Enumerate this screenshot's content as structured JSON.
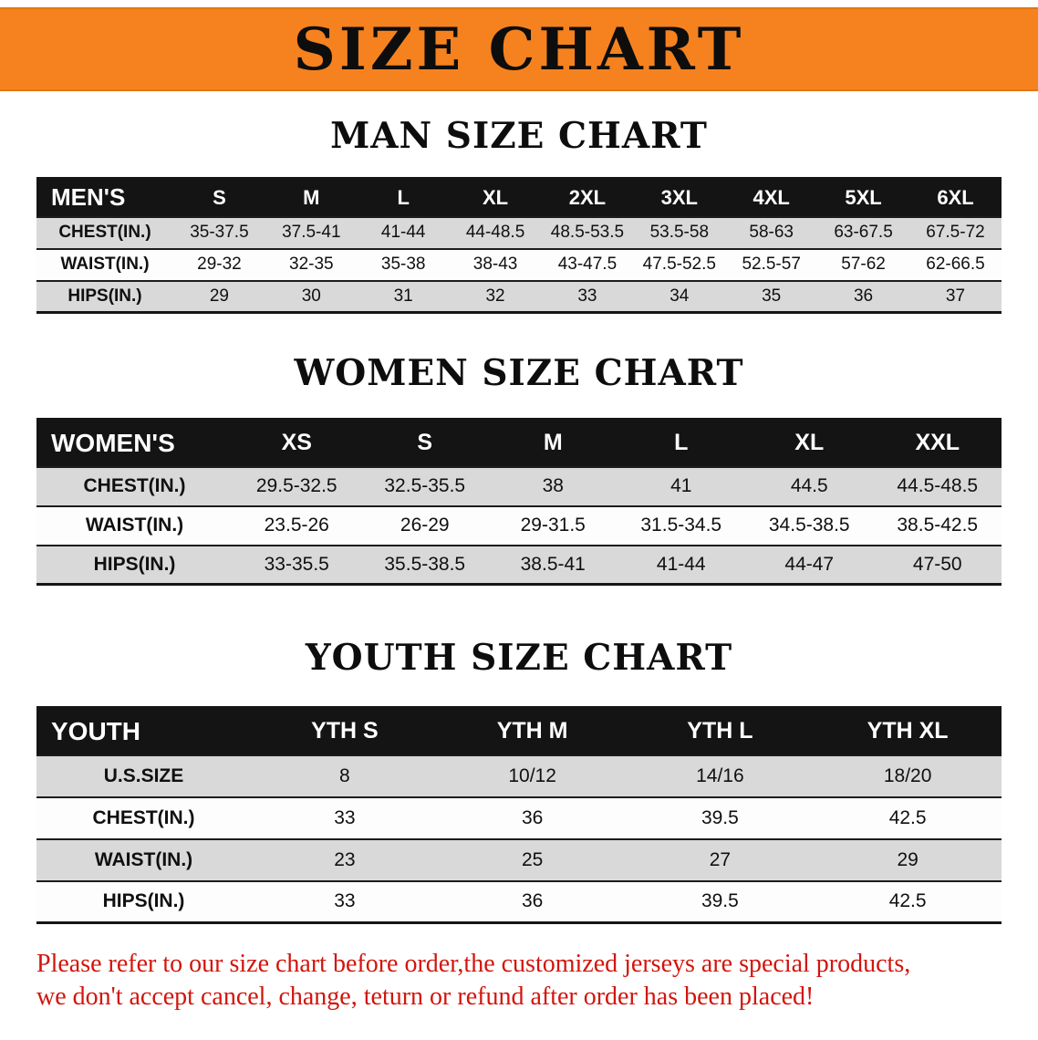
{
  "banner": {
    "title": "SIZE CHART",
    "bg_color": "#f5821f",
    "text_color": "#0d0d0d"
  },
  "sections": [
    {
      "name": "men",
      "heading": "MAN SIZE CHART",
      "header": [
        "MEN'S",
        "S",
        "M",
        "L",
        "XL",
        "2XL",
        "3XL",
        "4XL",
        "5XL",
        "6XL"
      ],
      "rows": [
        [
          "CHEST(IN.)",
          "35-37.5",
          "37.5-41",
          "41-44",
          "44-48.5",
          "48.5-53.5",
          "53.5-58",
          "58-63",
          "63-67.5",
          "67.5-72"
        ],
        [
          "WAIST(IN.)",
          "29-32",
          "32-35",
          "35-38",
          "38-43",
          "43-47.5",
          "47.5-52.5",
          "52.5-57",
          "57-62",
          "62-66.5"
        ],
        [
          "HIPS(IN.)",
          "29",
          "30",
          "31",
          "32",
          "33",
          "34",
          "35",
          "36",
          "37"
        ]
      ]
    },
    {
      "name": "women",
      "heading": "WOMEN SIZE CHART",
      "header": [
        "WOMEN'S",
        "XS",
        "S",
        "M",
        "L",
        "XL",
        "XXL"
      ],
      "rows": [
        [
          "CHEST(IN.)",
          "29.5-32.5",
          "32.5-35.5",
          "38",
          "41",
          "44.5",
          "44.5-48.5"
        ],
        [
          "WAIST(IN.)",
          "23.5-26",
          "26-29",
          "29-31.5",
          "31.5-34.5",
          "34.5-38.5",
          "38.5-42.5"
        ],
        [
          "HIPS(IN.)",
          "33-35.5",
          "35.5-38.5",
          "38.5-41",
          "41-44",
          "44-47",
          "47-50"
        ]
      ]
    },
    {
      "name": "youth",
      "heading": "YOUTH SIZE CHART",
      "header": [
        "YOUTH",
        "YTH S",
        "YTH M",
        "YTH L",
        "YTH XL"
      ],
      "rows": [
        [
          "U.S.SIZE",
          "8",
          "10/12",
          "14/16",
          "18/20"
        ],
        [
          "CHEST(IN.)",
          "33",
          "36",
          "39.5",
          "42.5"
        ],
        [
          "WAIST(IN.)",
          "23",
          "25",
          "27",
          "29"
        ],
        [
          "HIPS(IN.)",
          "33",
          "36",
          "39.5",
          "42.5"
        ]
      ]
    }
  ],
  "footer": {
    "line1": "Please refer to our size chart before order,the customized jerseys are special products,",
    "line2": "we don't accept cancel, change, teturn or refund after order has been placed!",
    "text_color": "#d2150c"
  }
}
